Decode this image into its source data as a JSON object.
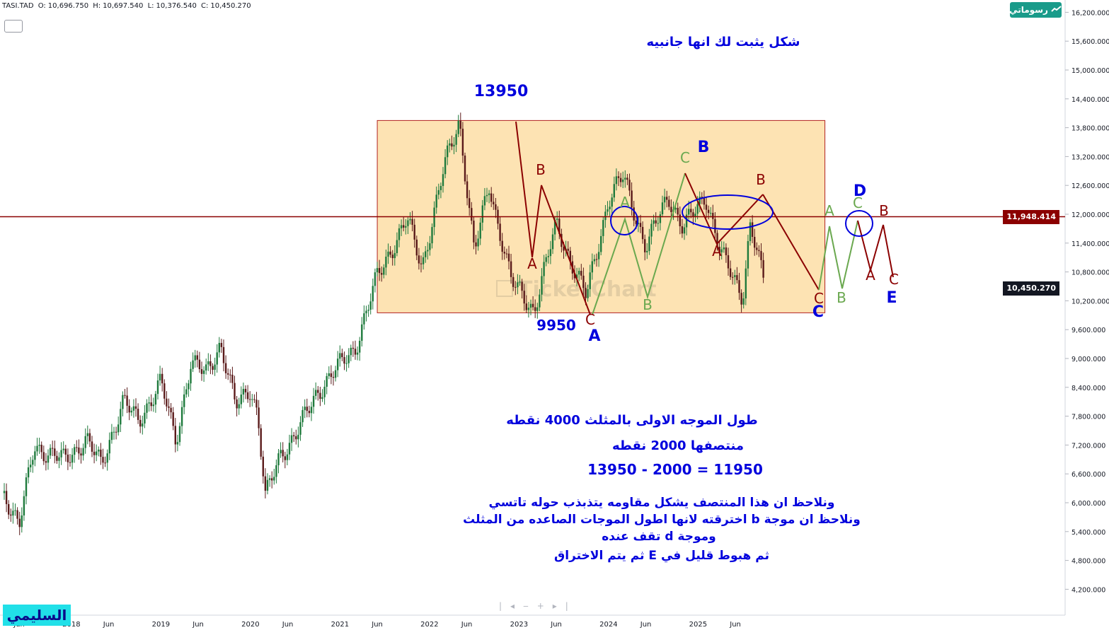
{
  "header": {
    "symbol": "TASI.TAD",
    "open_label": "O:",
    "open": "10,696.750",
    "high_label": "H:",
    "high": "10,697.540",
    "low_label": "L:",
    "low": "10,376.540",
    "close_label": "C:",
    "close": "10,450.270"
  },
  "logo": {
    "label": "رسوماتي",
    "icon": "trend-line-icon"
  },
  "price_tags": {
    "resistance": {
      "label": "11,948.414",
      "color": "#8b0000"
    },
    "last": {
      "label": "10,450.270",
      "color": "#131722"
    }
  },
  "author_badge": {
    "label": "السليمي",
    "background": "#21e0e8"
  },
  "watermark": "TickerChart",
  "chart_data": {
    "type": "candlestick",
    "y_axis": {
      "range": [
        3800,
        16500
      ],
      "ticks": [
        "16,200.000",
        "15,600.000",
        "15,000.000",
        "14,400.000",
        "13,800.000",
        "13,200.000",
        "12,600.000",
        "12,000.000",
        "11,400.000",
        "10,800.000",
        "10,200.000",
        "9,600.000",
        "9,000.000",
        "8,400.000",
        "7,800.000",
        "7,200.000",
        "6,600.000",
        "6,000.000",
        "5,400.000",
        "4,800.000",
        "4,200.000"
      ]
    },
    "x_axis": {
      "ticks": [
        "Jun",
        "2018",
        "Jun",
        "2019",
        "Jun",
        "2020",
        "Jun",
        "2021",
        "Jun",
        "2022",
        "Jun",
        "2023",
        "Jun",
        "2024",
        "Jun",
        "2025",
        "Jun"
      ]
    },
    "price_path": [
      [
        "2017-04",
        6200
      ],
      [
        "2017-06",
        5500
      ],
      [
        "2017-08",
        7200
      ],
      [
        "2017-10",
        7000
      ],
      [
        "2017-12",
        6900
      ],
      [
        "2018-03",
        7300
      ],
      [
        "2018-05",
        6800
      ],
      [
        "2018-08",
        8100
      ],
      [
        "2018-10",
        7700
      ],
      [
        "2019-01",
        8500
      ],
      [
        "2019-03",
        7300
      ],
      [
        "2019-05",
        8900
      ],
      [
        "2019-07",
        8700
      ],
      [
        "2019-09",
        9300
      ],
      [
        "2019-11",
        8000
      ],
      [
        "2020-01",
        8400
      ],
      [
        "2020-02",
        7800
      ],
      [
        "2020-03",
        6100
      ],
      [
        "2020-05",
        7000
      ],
      [
        "2020-07",
        7400
      ],
      [
        "2020-10",
        8300
      ],
      [
        "2020-12",
        8700
      ],
      [
        "2021-03",
        9200
      ],
      [
        "2021-06",
        10700
      ],
      [
        "2021-08",
        11300
      ],
      [
        "2021-10",
        11900
      ],
      [
        "2021-12",
        10900
      ],
      [
        "2022-03",
        13000
      ],
      [
        "2022-05",
        13950
      ],
      [
        "2022-07",
        11200
      ],
      [
        "2022-09",
        12600
      ],
      [
        "2022-12",
        10600
      ],
      [
        "2023-03",
        10000
      ],
      [
        "2023-06",
        11800
      ],
      [
        "2023-08",
        11000
      ],
      [
        "2023-10",
        10300
      ],
      [
        "2024-01",
        12300
      ],
      [
        "2024-03",
        12800
      ],
      [
        "2024-06",
        11300
      ],
      [
        "2024-09",
        12400
      ],
      [
        "2024-11",
        11700
      ],
      [
        "2025-02",
        12400
      ],
      [
        "2025-04",
        11200
      ],
      [
        "2025-07",
        10300
      ],
      [
        "2025-08",
        11800
      ],
      [
        "2025-10",
        10450
      ]
    ],
    "resistance_line": 11948.414,
    "range_box": {
      "top": 13950,
      "bottom": 9950,
      "from": "2021-06",
      "to": "2026-06"
    },
    "price_labels": {
      "high": "13950",
      "low": "9950"
    },
    "wave_labels": {
      "dark_red": [
        "B",
        "A",
        "C",
        "A",
        "B",
        "C",
        "B",
        "A",
        "C"
      ],
      "green": [
        "C",
        "A",
        "B",
        "A",
        "B",
        "C"
      ],
      "blue": [
        "B",
        "A",
        "C",
        "D",
        "E"
      ]
    },
    "annotations": {
      "title": "شكل يثبت لك انها جانبيه",
      "line1": "طول الموجه الاولى بالمثلث 4000 نقطه",
      "line2": "منتصفها 2000 نقطه",
      "line3": "11950 = 2000 - 13950",
      "line4": "ونلاحظ ان هذا المنتصف يشكل مقاومه يتذبذب حوله تاتسي",
      "line5": "ونلاحظ ان موجة b اخترقته لانها اطول الموجات الصاعده من المثلث",
      "line6": "وموجة d تقف عنده",
      "line7": "ثم هبوط قليل في E ثم يتم الاختراق"
    }
  }
}
